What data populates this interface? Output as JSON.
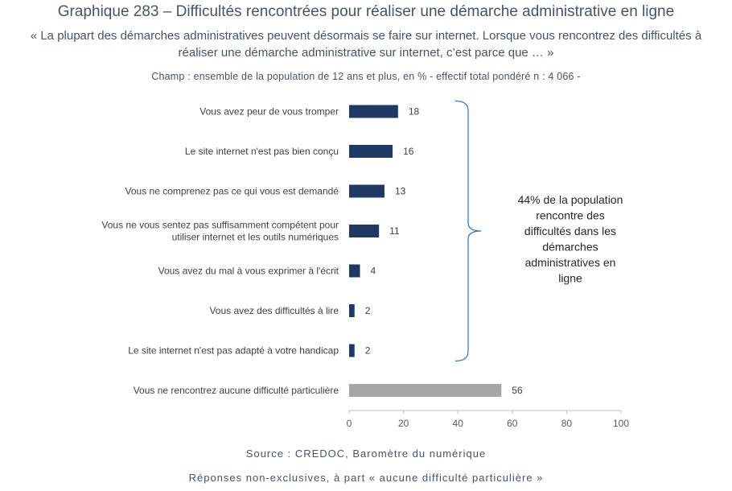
{
  "header": {
    "title": "Graphique 283 – Difficultés rencontrées pour réaliser une démarche administrative en ligne",
    "subtitle_line1": "« La plupart des démarches administratives peuvent désormais se faire sur internet. Lorsque vous rencontrez des difficultés à",
    "subtitle_line2": "réaliser une démarche administrative sur internet, c’est parce que … »",
    "scope": "Champ : ensemble de la population de 12 ans et plus, en % - effectif total pondéré n : 4 066 -"
  },
  "footer": {
    "source": "Source :  CREDOC, Baromètre du numérique",
    "note": "Réponses non-exclusives, à part « aucune difficulté particulière »"
  },
  "chart_data": {
    "type": "bar",
    "orientation": "horizontal",
    "categories": [
      [
        "Vous avez peur de vous tromper"
      ],
      [
        "Le site internet n'est pas bien conçu"
      ],
      [
        "Vous ne comprenez pas ce qui vous est demandé"
      ],
      [
        "Vous ne vous sentez pas suffisamment compétent pour",
        "utiliser internet et les outils numériques"
      ],
      [
        "Vous avez du mal à vous exprimer à l'écrit"
      ],
      [
        "Vous avez des difficultés à lire"
      ],
      [
        "Le site internet n'est pas adapté à votre handicap"
      ],
      [
        "Vous ne rencontrez aucune difficulté particulière"
      ]
    ],
    "values": [
      18,
      16,
      13,
      11,
      4,
      2,
      2,
      56
    ],
    "value_labels": [
      "18",
      "16",
      "13",
      "11",
      "4",
      "2",
      "2",
      "56"
    ],
    "bar_colors": [
      "#1f3864",
      "#1f3864",
      "#1f3864",
      "#1f3864",
      "#1f3864",
      "#1f3864",
      "#1f3864",
      "#a6a6a6"
    ],
    "xlim": [
      0,
      100
    ],
    "xticks": [
      0,
      20,
      40,
      60,
      80,
      100
    ],
    "xtick_labels": [
      "0",
      "20",
      "40",
      "60",
      "80",
      "100"
    ],
    "annotation": {
      "lines": [
        "44% de la population",
        "rencontre des",
        "difficultés dans les",
        "démarches",
        "administratives en",
        "ligne"
      ],
      "brace_from_category": 0,
      "brace_to_category": 6
    }
  }
}
